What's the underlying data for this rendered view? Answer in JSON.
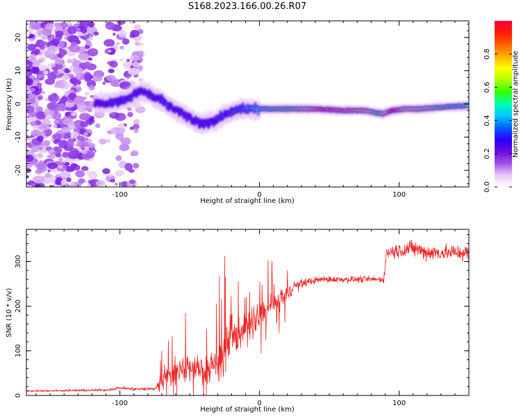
{
  "title": "S168.2023.166.00.26.R07",
  "chart_data": [
    {
      "type": "heatmap",
      "id": "spectrogram",
      "xlabel": "Height of straight line (km)",
      "ylabel": "Frequency (Hz)",
      "xlim": [
        -167,
        150
      ],
      "ylim": [
        -25,
        25
      ],
      "x_ticks": [
        -100,
        0,
        100
      ],
      "y_ticks": [
        -20,
        -10,
        0,
        10,
        20
      ],
      "colorbar": {
        "label": "Normalized spectral amplitude",
        "range": [
          0,
          1
        ],
        "ticks": [
          "0.0",
          "0.2",
          "0.4",
          "0.6",
          "0.8"
        ],
        "colors": [
          "#ffffff",
          "#e6c8f5",
          "#a050e8",
          "#6a0ae0",
          "#2a00ff",
          "#0060ff",
          "#00c8ff",
          "#00ffb0",
          "#30ff00",
          "#b0ff00",
          "#ffff00",
          "#ffb000",
          "#ff6000",
          "#ff1a00",
          "#ff0040"
        ]
      },
      "ridge_freq_hz": [
        [
          -115,
          0.0
        ],
        [
          -105,
          0.5
        ],
        [
          -95,
          1.5
        ],
        [
          -85,
          4.0
        ],
        [
          -78,
          2.5
        ],
        [
          -70,
          1.0
        ],
        [
          -62,
          -1.5
        ],
        [
          -55,
          -3.0
        ],
        [
          -48,
          -5.0
        ],
        [
          -42,
          -6.0
        ],
        [
          -35,
          -5.5
        ],
        [
          -28,
          -4.0
        ],
        [
          -20,
          -2.5
        ],
        [
          -12,
          -1.5
        ],
        [
          0,
          -1.5
        ],
        [
          20,
          -1.5
        ],
        [
          40,
          -1.5
        ],
        [
          60,
          -2.0
        ],
        [
          75,
          -2.0
        ],
        [
          82,
          -2.5
        ],
        [
          88,
          -3.0
        ],
        [
          95,
          -2.0
        ],
        [
          105,
          -1.5
        ],
        [
          115,
          -1.5
        ],
        [
          130,
          -1.0
        ],
        [
          150,
          -0.5
        ]
      ],
      "ridge_amplitude": [
        [
          -115,
          0.25
        ],
        [
          -105,
          0.3
        ],
        [
          -95,
          0.3
        ],
        [
          -85,
          0.28
        ],
        [
          -75,
          0.3
        ],
        [
          -65,
          0.3
        ],
        [
          -55,
          0.28
        ],
        [
          -45,
          0.28
        ],
        [
          -35,
          0.3
        ],
        [
          -25,
          0.3
        ],
        [
          -15,
          0.35
        ],
        [
          -5,
          0.4
        ],
        [
          5,
          0.5
        ],
        [
          15,
          0.55
        ],
        [
          30,
          0.65
        ],
        [
          45,
          0.85
        ],
        [
          60,
          0.8
        ],
        [
          75,
          0.75
        ],
        [
          85,
          0.55
        ],
        [
          95,
          0.9
        ],
        [
          105,
          0.7
        ],
        [
          120,
          0.65
        ],
        [
          135,
          0.55
        ],
        [
          150,
          0.5
        ]
      ],
      "noise_region_km": [
        -167,
        -85
      ]
    },
    {
      "type": "line",
      "id": "snr",
      "xlabel": "Height of straight line (km)",
      "ylabel": "SNR (10 * v/v)",
      "xlim": [
        -167,
        150
      ],
      "ylim": [
        0,
        372
      ],
      "x_ticks": [
        -100,
        0,
        100
      ],
      "y_ticks": [
        0,
        100,
        200,
        300
      ],
      "color": "#ee2222",
      "series": [
        {
          "trend": [
            [
              -167,
              10
            ],
            [
              -110,
              12
            ],
            [
              -100,
              17
            ],
            [
              -90,
              14
            ],
            [
              -75,
              15
            ],
            [
              -70,
              35
            ],
            [
              -62,
              50
            ],
            [
              -55,
              60
            ],
            [
              -45,
              60
            ],
            [
              -38,
              55
            ],
            [
              -30,
              80
            ],
            [
              -22,
              110
            ],
            [
              -15,
              140
            ],
            [
              -8,
              160
            ],
            [
              0,
              175
            ],
            [
              8,
              195
            ],
            [
              15,
              215
            ],
            [
              20,
              230
            ],
            [
              25,
              245
            ],
            [
              35,
              255
            ],
            [
              45,
              260
            ],
            [
              60,
              260
            ],
            [
              75,
              260
            ],
            [
              89,
              260
            ],
            [
              91,
              320
            ],
            [
              100,
              325
            ],
            [
              110,
              330
            ],
            [
              120,
              320
            ],
            [
              135,
              320
            ],
            [
              150,
              320
            ]
          ],
          "noise_amplitude": [
            [
              -167,
              3
            ],
            [
              -110,
              4
            ],
            [
              -100,
              6
            ],
            [
              -90,
              6
            ],
            [
              -75,
              6
            ],
            [
              -70,
              30
            ],
            [
              -62,
              45
            ],
            [
              -55,
              55
            ],
            [
              -45,
              55
            ],
            [
              -38,
              60
            ],
            [
              -30,
              75
            ],
            [
              -22,
              90
            ],
            [
              -15,
              70
            ],
            [
              -8,
              60
            ],
            [
              0,
              55
            ],
            [
              8,
              50
            ],
            [
              15,
              40
            ],
            [
              20,
              30
            ],
            [
              25,
              22
            ],
            [
              35,
              14
            ],
            [
              45,
              12
            ],
            [
              60,
              12
            ],
            [
              75,
              12
            ],
            [
              89,
              12
            ],
            [
              91,
              25
            ],
            [
              100,
              30
            ],
            [
              110,
              30
            ],
            [
              120,
              30
            ],
            [
              135,
              30
            ],
            [
              150,
              30
            ]
          ]
        }
      ]
    }
  ]
}
